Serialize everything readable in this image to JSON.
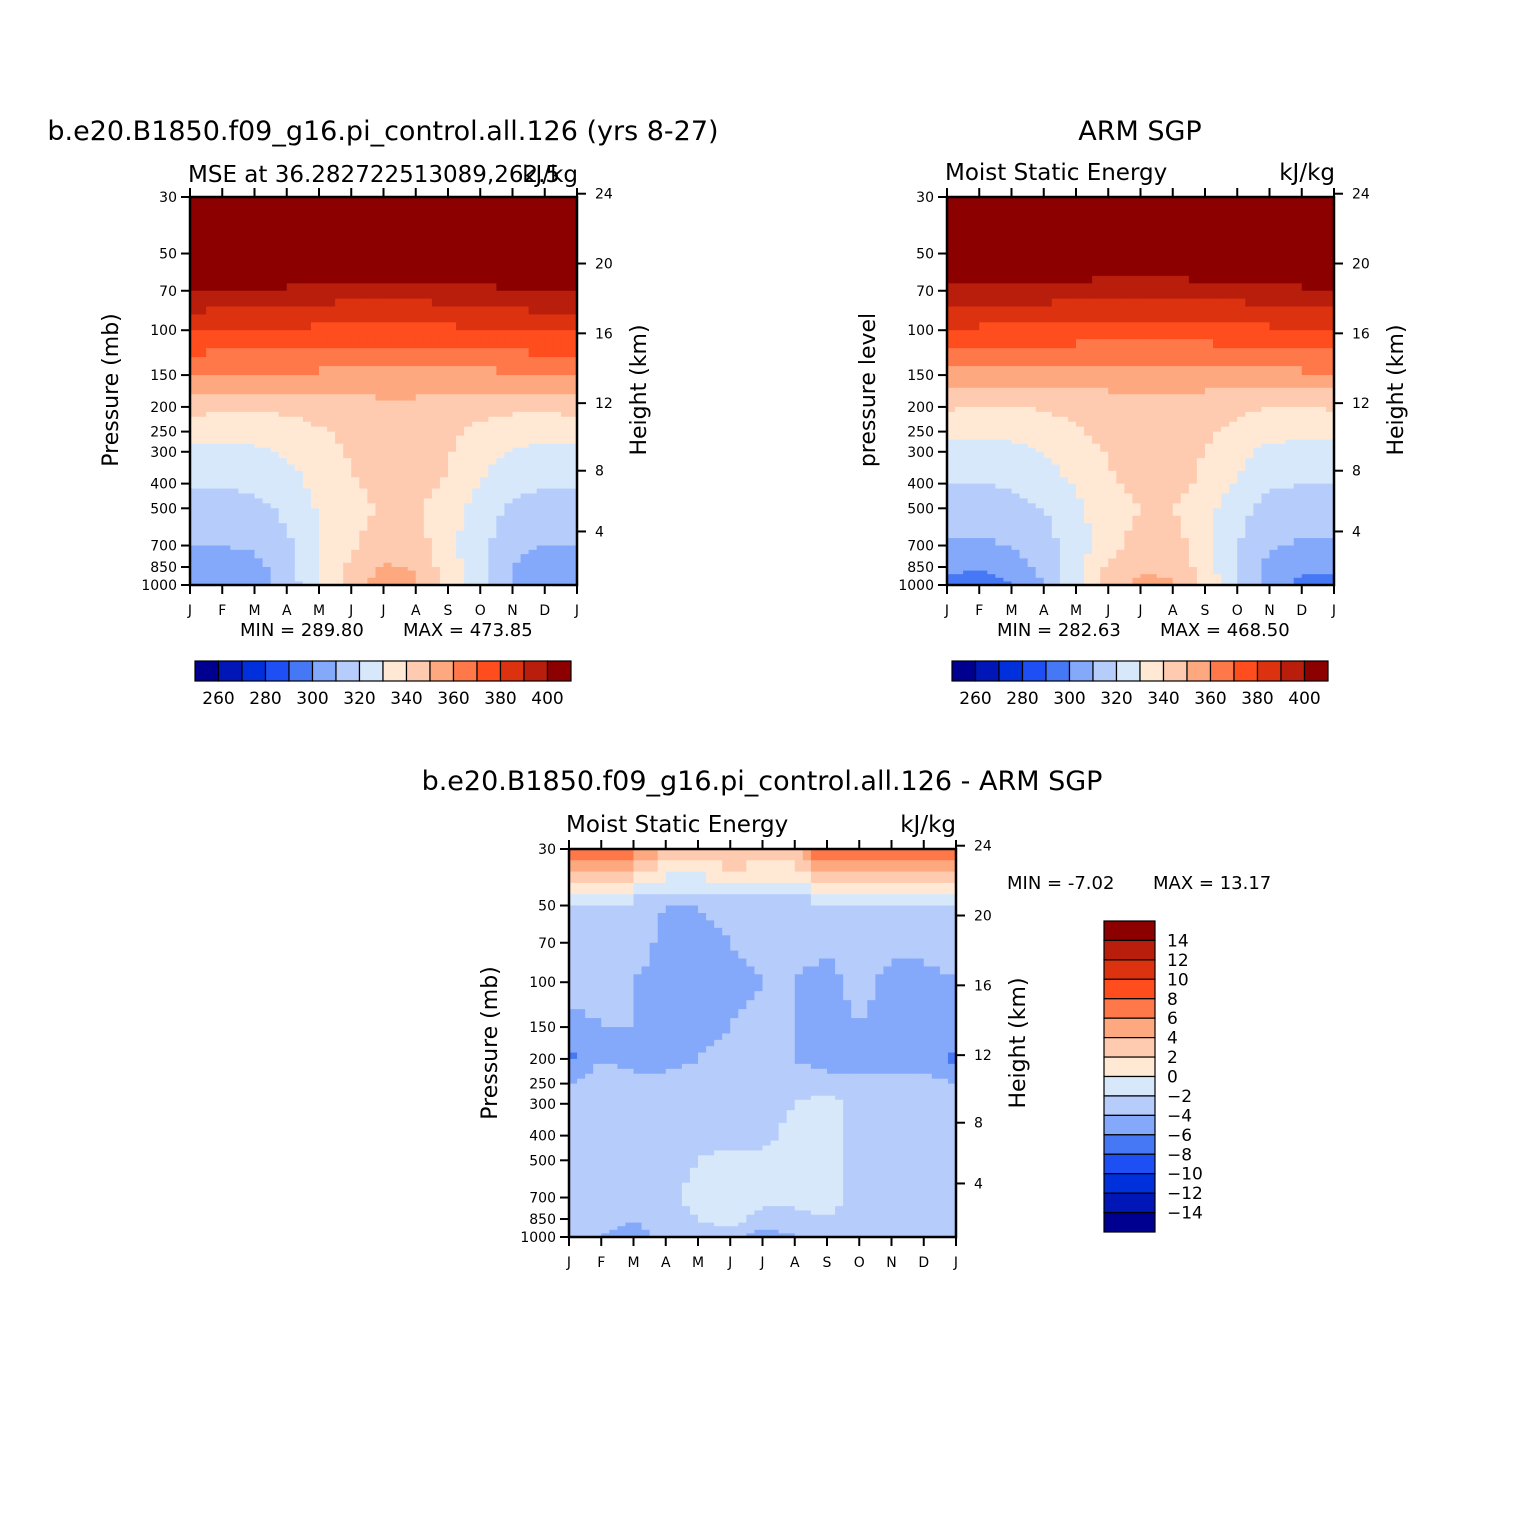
{
  "colors": {
    "abs_scale": [
      "#000090",
      "#0016b6",
      "#0030dc",
      "#1e4ff5",
      "#4678f5",
      "#84a8fa",
      "#b6ccfb",
      "#d8e8fb",
      "#ffe9d5",
      "#fecbb0",
      "#fea880",
      "#ff784a",
      "#ff4d1e",
      "#dd3210",
      "#b91e0d",
      "#8c0000"
    ],
    "diff_scale": [
      "#8c0000",
      "#b91e0d",
      "#dd3210",
      "#ff4d1e",
      "#ff784a",
      "#fea880",
      "#fecbb0",
      "#ffe9d5",
      "#d8e8fb",
      "#b6ccfb",
      "#84a8fa",
      "#4678f5",
      "#1e4ff5",
      "#0030dc",
      "#0016b6",
      "#000090"
    ]
  },
  "chart_data": [
    {
      "type": "heatmap",
      "title": "b.e20.B1850.f09_g16.pi_control.all.126 (yrs 8-27)",
      "subtitle_left": "MSE at 36.282722513089,262.5",
      "subtitle_right": "kJ/kg",
      "ylabel": "Pressure (mb)",
      "y2label": "Height (km)",
      "x_ticks": [
        "J",
        "F",
        "M",
        "A",
        "M",
        "J",
        "J",
        "A",
        "S",
        "O",
        "N",
        "D",
        "J"
      ],
      "y_ticks": [
        "30",
        "50",
        "70",
        "100",
        "150",
        "200",
        "250",
        "300",
        "400",
        "500",
        "700",
        "850",
        "1000"
      ],
      "y2_ticks": [
        "24",
        "20",
        "16",
        "12",
        "8",
        "4"
      ],
      "min_label": "MIN = 289.80",
      "max_label": "MAX = 473.85",
      "min": 289.8,
      "max": 473.85,
      "colorbar_labels": [
        "260",
        "280",
        "300",
        "320",
        "340",
        "360",
        "380",
        "400"
      ],
      "months": [
        1,
        2,
        3,
        4,
        5,
        6,
        7,
        8,
        9,
        10,
        11,
        12,
        13
      ],
      "levels": [
        30,
        50,
        70,
        100,
        150,
        200,
        250,
        300,
        400,
        500,
        700,
        850,
        1000
      ],
      "values": [
        [
          450,
          450,
          450,
          450,
          452,
          452,
          452,
          452,
          452,
          452,
          450,
          450,
          450
        ],
        [
          415,
          415,
          415,
          414,
          413,
          412,
          412,
          412,
          413,
          414,
          415,
          415,
          415
        ],
        [
          395,
          394,
          394,
          393,
          391,
          390,
          390,
          390,
          391,
          392,
          394,
          395,
          395
        ],
        [
          376,
          375,
          375,
          374,
          373,
          372,
          372,
          372,
          373,
          374,
          375,
          376,
          376
        ],
        [
          355,
          354,
          354,
          354,
          353,
          352,
          350,
          350,
          351,
          352,
          354,
          355,
          355
        ],
        [
          338,
          337,
          337,
          337,
          339,
          341,
          343,
          343,
          341,
          338,
          337,
          337,
          338
        ],
        [
          329,
          329,
          329,
          331,
          334,
          337,
          338,
          338,
          337,
          333,
          330,
          329,
          329
        ],
        [
          322,
          322,
          323,
          326,
          331,
          336,
          338,
          338,
          336,
          329,
          324,
          322,
          322
        ],
        [
          316,
          316,
          317,
          321,
          328,
          334,
          338,
          338,
          334,
          325,
          318,
          316,
          316
        ],
        [
          311,
          311,
          312,
          317,
          326,
          332,
          336,
          336,
          330,
          321,
          313,
          311,
          311
        ],
        [
          305,
          305,
          307,
          313,
          324,
          333,
          341,
          340,
          328,
          318,
          308,
          305,
          305
        ],
        [
          299,
          298,
          301,
          311,
          324,
          338,
          346,
          344,
          330,
          318,
          305,
          299,
          299
        ],
        [
          296,
          295,
          298,
          309,
          324,
          341,
          349,
          347,
          332,
          318,
          303,
          296,
          296
        ]
      ]
    },
    {
      "type": "heatmap",
      "title": "ARM SGP",
      "subtitle_left": "Moist Static Energy",
      "subtitle_right": "kJ/kg",
      "ylabel": "pressure level",
      "y2label": "Height (km)",
      "x_ticks": [
        "J",
        "F",
        "M",
        "A",
        "M",
        "J",
        "J",
        "A",
        "S",
        "O",
        "N",
        "D",
        "J"
      ],
      "y_ticks": [
        "30",
        "50",
        "70",
        "100",
        "150",
        "200",
        "250",
        "300",
        "400",
        "500",
        "700",
        "850",
        "1000"
      ],
      "y2_ticks": [
        "24",
        "20",
        "16",
        "12",
        "8",
        "4"
      ],
      "min_label": "MIN = 282.63",
      "max_label": "MAX = 468.50",
      "min": 282.63,
      "max": 468.5,
      "colorbar_labels": [
        "260",
        "280",
        "300",
        "320",
        "340",
        "360",
        "380",
        "400"
      ],
      "months": [
        1,
        2,
        3,
        4,
        5,
        6,
        7,
        8,
        9,
        10,
        11,
        12,
        13
      ],
      "levels": [
        30,
        50,
        70,
        100,
        150,
        200,
        250,
        300,
        400,
        500,
        700,
        850,
        1000
      ],
      "values": [
        [
          448,
          448,
          448,
          448,
          450,
          450,
          450,
          450,
          450,
          450,
          448,
          448,
          448
        ],
        [
          413,
          413,
          413,
          412,
          411,
          410,
          410,
          410,
          411,
          412,
          413,
          413,
          413
        ],
        [
          393,
          392,
          392,
          391,
          389,
          388,
          388,
          388,
          389,
          390,
          392,
          393,
          393
        ],
        [
          374,
          373,
          373,
          372,
          371,
          370,
          370,
          370,
          371,
          372,
          373,
          374,
          374
        ],
        [
          353,
          352,
          352,
          352,
          351,
          350,
          349,
          349,
          350,
          351,
          352,
          353,
          353
        ],
        [
          336,
          335,
          335,
          336,
          338,
          340,
          342,
          342,
          340,
          337,
          335,
          335,
          336
        ],
        [
          328,
          328,
          328,
          330,
          334,
          338,
          340,
          340,
          337,
          332,
          329,
          328,
          328
        ],
        [
          321,
          321,
          322,
          325,
          330,
          336,
          339,
          339,
          335,
          328,
          322,
          321,
          321
        ],
        [
          315,
          315,
          316,
          320,
          326,
          333,
          338,
          338,
          333,
          324,
          317,
          315,
          315
        ],
        [
          310,
          310,
          311,
          315,
          323,
          330,
          335,
          335,
          329,
          318,
          311,
          310,
          310
        ],
        [
          304,
          303,
          306,
          311,
          320,
          330,
          340,
          340,
          328,
          316,
          306,
          304,
          304
        ],
        [
          297,
          296,
          299,
          308,
          322,
          337,
          344,
          343,
          330,
          315,
          302,
          297,
          297
        ],
        [
          292,
          291,
          294,
          305,
          322,
          340,
          347,
          346,
          332,
          315,
          299,
          292,
          292
        ]
      ]
    },
    {
      "type": "heatmap",
      "title": "b.e20.B1850.f09_g16.pi_control.all.126 - ARM SGP",
      "subtitle_left": "Moist Static Energy",
      "subtitle_right": "kJ/kg",
      "ylabel": "Pressure (mb)",
      "y2label": "Height (km)",
      "x_ticks": [
        "J",
        "F",
        "M",
        "A",
        "M",
        "J",
        "J",
        "A",
        "S",
        "O",
        "N",
        "D",
        "J"
      ],
      "y_ticks": [
        "30",
        "50",
        "70",
        "100",
        "150",
        "200",
        "250",
        "300",
        "400",
        "500",
        "700",
        "850",
        "1000"
      ],
      "y2_ticks": [
        "24",
        "20",
        "16",
        "12",
        "8",
        "4"
      ],
      "min_label": "MIN = -7.02",
      "max_label": "MAX = 13.17",
      "min": -7.02,
      "max": 13.17,
      "colorbar_labels": [
        "14",
        "12",
        "10",
        "8",
        "6",
        "4",
        "2",
        "0",
        "-2",
        "-4",
        "-6",
        "-8",
        "-10",
        "-12",
        "-14"
      ],
      "months": [
        1,
        2,
        3,
        4,
        5,
        6,
        7,
        8,
        9,
        10,
        11,
        12,
        13
      ],
      "levels": [
        30,
        50,
        70,
        100,
        150,
        200,
        250,
        300,
        400,
        500,
        700,
        850,
        1000
      ],
      "values": [
        [
          9,
          9,
          7,
          4,
          3,
          5,
          3,
          4,
          9,
          8,
          9,
          9,
          8
        ],
        [
          -3,
          -3,
          -3,
          -4,
          -4,
          -3,
          -3,
          -3,
          -3,
          -2,
          -2,
          -3,
          -3
        ],
        [
          -3,
          -3,
          -3,
          -4.5,
          -5,
          -4,
          -3,
          -3,
          -3.5,
          -2,
          -3,
          -3,
          -3
        ],
        [
          -3,
          -3,
          -4,
          -5,
          -5,
          -5,
          -4,
          -4,
          -5,
          -3,
          -5,
          -5,
          -4
        ],
        [
          -5,
          -4,
          -4,
          -5,
          -5,
          -4,
          -3,
          -4,
          -5,
          -4,
          -5,
          -5,
          -5
        ],
        [
          -6.5,
          -4,
          -5,
          -5,
          -4,
          -3,
          -3,
          -4,
          -5,
          -6,
          -5,
          -5,
          -6.5
        ],
        [
          -4,
          -3,
          -3,
          -3,
          -3,
          -3,
          -3,
          -3,
          -3,
          -3,
          -3,
          -3,
          -4
        ],
        [
          -3,
          -3,
          -3,
          -3,
          -3,
          -3,
          -3,
          -2,
          -1,
          -3,
          -3,
          -3,
          -3
        ],
        [
          -3,
          -3,
          -3,
          -3,
          -3,
          -3,
          -3,
          -1,
          -1,
          -3,
          -3,
          -3,
          -3
        ],
        [
          -3,
          -3,
          -3,
          -3,
          -2,
          -1,
          -1,
          -1,
          -1,
          -3,
          -3,
          -3,
          -3
        ],
        [
          -3,
          -3,
          -3,
          -3,
          -1,
          -1,
          -1,
          -1,
          -1,
          -3,
          -3,
          -3,
          -3
        ],
        [
          -3,
          -3,
          -4,
          -3,
          -2,
          -1,
          -3,
          -3,
          -2,
          -3,
          -3,
          -3,
          -3
        ],
        [
          -3,
          -4,
          -5,
          -3,
          -3,
          -3,
          -5,
          -4,
          -3,
          -4,
          -3,
          -3,
          -3
        ]
      ]
    }
  ]
}
